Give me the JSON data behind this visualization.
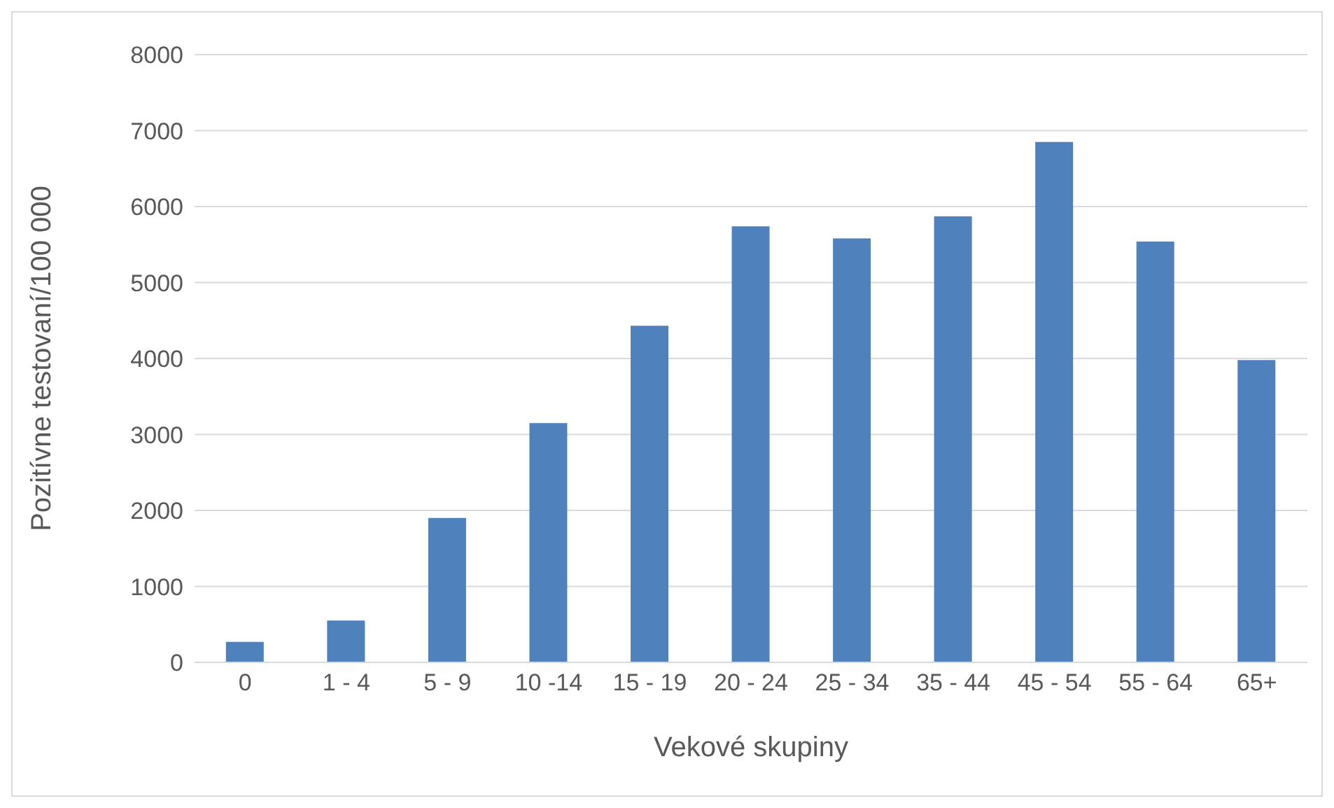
{
  "chart_data": {
    "type": "bar",
    "xlabel": "Vekové skupiny",
    "ylabel": "Pozitívne testovaní/100 000",
    "categories": [
      "0",
      "1 - 4",
      "5 - 9",
      "10 -14",
      "15 - 19",
      "20 - 24",
      "25 - 34",
      "35 - 44",
      "45 - 54",
      "55 - 64",
      "65+"
    ],
    "values": [
      270,
      550,
      1900,
      3150,
      4430,
      5740,
      5580,
      5870,
      6850,
      5540,
      3980
    ],
    "color": "#4f81bd",
    "ylim": [
      0,
      8000
    ],
    "yticks": [
      0,
      1000,
      2000,
      3000,
      4000,
      5000,
      6000,
      7000,
      8000
    ],
    "grid": "y"
  }
}
